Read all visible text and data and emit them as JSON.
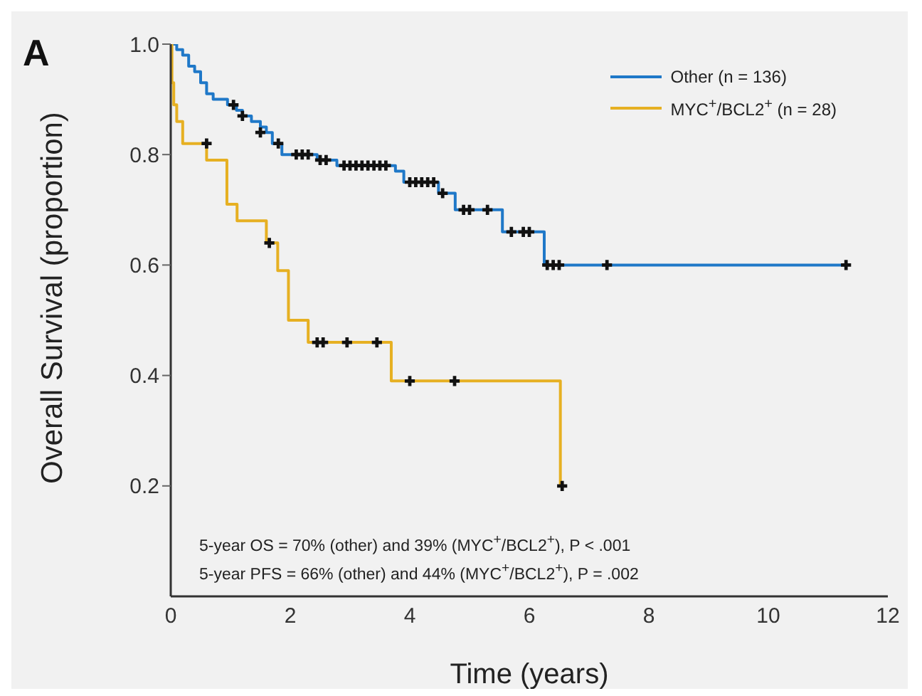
{
  "chart_data": {
    "type": "step",
    "title": "A",
    "xlabel": "Time (years)",
    "ylabel": "Overall Survival (proportion)",
    "xlim": [
      0,
      12
    ],
    "xticks": [
      0,
      2,
      4,
      6,
      8,
      10,
      12
    ],
    "ylim": [
      0,
      1
    ],
    "yticks": [
      {
        "value": 0.2,
        "label": "0.2"
      },
      {
        "value": 0.4,
        "label": "0.4"
      },
      {
        "value": 0.6,
        "label": "0.6"
      },
      {
        "value": 0.8,
        "label": "0.8"
      },
      {
        "value": 1,
        "label": "1.0"
      }
    ],
    "legend": "top right",
    "annotations": [
      "5-year OS = 70% (other) and 39% (MYC$^{+}$/BCL2$^{+}$), P < .001",
      "5-year PFS = 66% (other) and 44% (MYC$^{+}$/BCL2$^{+}$), P = .002"
    ],
    "series": [
      {
        "name": "Other (n = 136)",
        "color": "#1f78c8",
        "x": [
          0,
          0.1,
          0.2,
          0.3,
          0.4,
          0.5,
          0.6,
          0.71,
          0.95,
          1.1,
          1.2,
          1.35,
          1.5,
          1.6,
          1.7,
          1.86,
          2.45,
          2.78,
          3.76,
          3.9,
          4.48,
          4.76,
          5.55,
          6.25,
          11.3
        ],
        "values": [
          1,
          0.99,
          0.98,
          0.96,
          0.95,
          0.93,
          0.91,
          0.9,
          0.89,
          0.88,
          0.87,
          0.86,
          0.85,
          0.84,
          0.82,
          0.8,
          0.79,
          0.78,
          0.77,
          0.75,
          0.73,
          0.7,
          0.66,
          0.6,
          0.6
        ]
      },
      {
        "name": "MYC$^{+}$/BCL2$^{+}$ (n = 28)",
        "color": "#e6b022",
        "x": [
          0,
          0.02,
          0.05,
          0.1,
          0.2,
          0.6,
          0.94,
          1.11,
          1.6,
          1.79,
          1.97,
          2.3,
          3.69,
          6.52,
          6.55
        ],
        "values": [
          1,
          0.93,
          0.89,
          0.86,
          0.82,
          0.79,
          0.71,
          0.68,
          0.64,
          0.59,
          0.5,
          0.46,
          0.39,
          0.2,
          0.2
        ]
      },
      {
        "type": "scatter",
        "marker": "cross",
        "color": "#111111",
        "x": [
          1.05,
          1.2,
          1.5,
          1.8,
          2.1,
          2.2,
          2.3,
          2.5,
          2.6,
          2.9,
          3.0,
          3.1,
          3.2,
          3.3,
          3.4,
          3.5,
          3.6,
          4.0,
          4.1,
          4.2,
          4.3,
          4.4,
          4.55,
          4.9,
          5.0,
          5.3,
          5.7,
          5.9,
          6.0,
          6.3,
          6.4,
          6.5,
          7.3,
          11.3,
          0.6,
          1.65,
          2.45,
          2.55,
          2.95,
          3.45,
          4.0,
          4.75,
          6.55
        ],
        "values": [
          0.89,
          0.87,
          0.84,
          0.82,
          0.8,
          0.8,
          0.8,
          0.79,
          0.79,
          0.78,
          0.78,
          0.78,
          0.78,
          0.78,
          0.78,
          0.78,
          0.78,
          0.75,
          0.75,
          0.75,
          0.75,
          0.75,
          0.73,
          0.7,
          0.7,
          0.7,
          0.66,
          0.66,
          0.66,
          0.6,
          0.6,
          0.6,
          0.6,
          0.6,
          0.82,
          0.64,
          0.46,
          0.46,
          0.46,
          0.46,
          0.39,
          0.39,
          0.2
        ]
      }
    ]
  }
}
